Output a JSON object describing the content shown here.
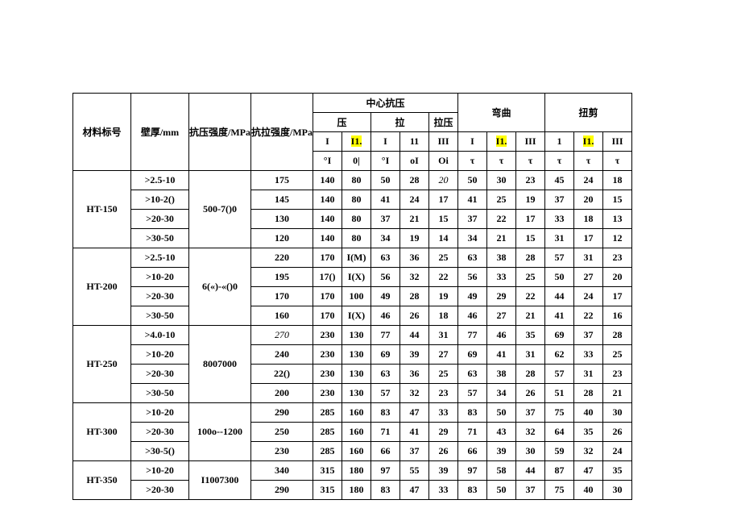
{
  "header": {
    "col_material": "材料标号",
    "col_wall": "壁厚/mm",
    "col_comp": "抗压强度/MPa",
    "col_tens": "抗拉强度/MPa",
    "group_center": "中心抗压",
    "group_bend": "弯曲",
    "group_tors": "扭剪",
    "sub_ya": "压",
    "sub_la": "拉",
    "sub_laya": "拉压",
    "r3": [
      "I",
      "I1.",
      "I",
      "11",
      "III",
      "I",
      "I1.",
      "III",
      "1",
      "I1.",
      "III"
    ],
    "r4": [
      "°I",
      "0|",
      "°I",
      "oI",
      "Oi",
      "τ",
      "τ",
      "τ",
      "τ",
      "τ",
      "τ"
    ]
  },
  "groups": [
    {
      "material": "HT-150",
      "comp": "500-7()0",
      "rows": [
        {
          "wall": ">2.5-10",
          "tens": "175",
          "v": [
            "140",
            "80",
            "50",
            "28",
            "20",
            "50",
            "30",
            "23",
            "45",
            "24",
            "18"
          ],
          "italic": [
            4
          ]
        },
        {
          "wall": ">10-2()",
          "tens": "145",
          "v": [
            "140",
            "80",
            "41",
            "24",
            "17",
            "41",
            "25",
            "19",
            "37",
            "20",
            "15"
          ]
        },
        {
          "wall": ">20-30",
          "tens": "130",
          "v": [
            "140",
            "80",
            "37",
            "21",
            "15",
            "37",
            "22",
            "17",
            "33",
            "18",
            "13"
          ]
        },
        {
          "wall": ">30-50",
          "tens": "120",
          "v": [
            "140",
            "80",
            "34",
            "19",
            "14",
            "34",
            "21",
            "15",
            "31",
            "17",
            "12"
          ]
        }
      ]
    },
    {
      "material": "HT-200",
      "comp": "6(«)-«()0",
      "rows": [
        {
          "wall": ">2.5-10",
          "tens": "220",
          "v": [
            "170",
            "I(M)",
            "63",
            "36",
            "25",
            "63",
            "38",
            "28",
            "57",
            "31",
            "23"
          ]
        },
        {
          "wall": ">10-20",
          "tens": "195",
          "v": [
            "17()",
            "I(X)",
            "56",
            "32",
            "22",
            "56",
            "33",
            "25",
            "50",
            "27",
            "20"
          ]
        },
        {
          "wall": ">20-30",
          "tens": "170",
          "v": [
            "170",
            "100",
            "49",
            "28",
            "19",
            "49",
            "29",
            "22",
            "44",
            "24",
            "17"
          ]
        },
        {
          "wall": ">30-50",
          "tens": "160",
          "v": [
            "170",
            "I(X)",
            "46",
            "26",
            "18",
            "46",
            "27",
            "21",
            "41",
            "22",
            "16"
          ]
        }
      ]
    },
    {
      "material": "HT-250",
      "comp": "8007000",
      "rows": [
        {
          "wall": ">4.0-10",
          "tens": "270",
          "tens_italic": true,
          "v": [
            "230",
            "130",
            "77",
            "44",
            "31",
            "77",
            "46",
            "35",
            "69",
            "37",
            "28"
          ]
        },
        {
          "wall": ">10-20",
          "tens": "240",
          "v": [
            "230",
            "130",
            "69",
            "39",
            "27",
            "69",
            "41",
            "31",
            "62",
            "33",
            "25"
          ]
        },
        {
          "wall": ">20-30",
          "tens": "22()",
          "v": [
            "230",
            "130",
            "63",
            "36",
            "25",
            "63",
            "38",
            "28",
            "57",
            "31",
            "23"
          ]
        },
        {
          "wall": ">30-50",
          "tens": "200",
          "v": [
            "230",
            "130",
            "57",
            "32",
            "23",
            "57",
            "34",
            "26",
            "51",
            "28",
            "21"
          ]
        }
      ]
    },
    {
      "material": "HT-300",
      "comp": "100o--1200",
      "rows": [
        {
          "wall": ">10-20",
          "tens": "290",
          "v": [
            "285",
            "160",
            "83",
            "47",
            "33",
            "83",
            "50",
            "37",
            "75",
            "40",
            "30"
          ]
        },
        {
          "wall": ">20-30",
          "tens": "250",
          "v": [
            "285",
            "160",
            "71",
            "41",
            "29",
            "71",
            "43",
            "32",
            "64",
            "35",
            "26"
          ]
        },
        {
          "wall": ">30-5()",
          "tens": "230",
          "v": [
            "285",
            "160",
            "66",
            "37",
            "26",
            "66",
            "39",
            "30",
            "59",
            "32",
            "24"
          ]
        }
      ]
    },
    {
      "material": "HT-350",
      "comp": "I1007300",
      "rows": [
        {
          "wall": ">10-20",
          "tens": "340",
          "v": [
            "315",
            "180",
            "97",
            "55",
            "39",
            "97",
            "58",
            "44",
            "87",
            "47",
            "35"
          ]
        },
        {
          "wall": ">20-30",
          "tens": "290",
          "v": [
            "315",
            "180",
            "83",
            "47",
            "33",
            "83",
            "50",
            "37",
            "75",
            "40",
            "30"
          ]
        }
      ]
    }
  ]
}
